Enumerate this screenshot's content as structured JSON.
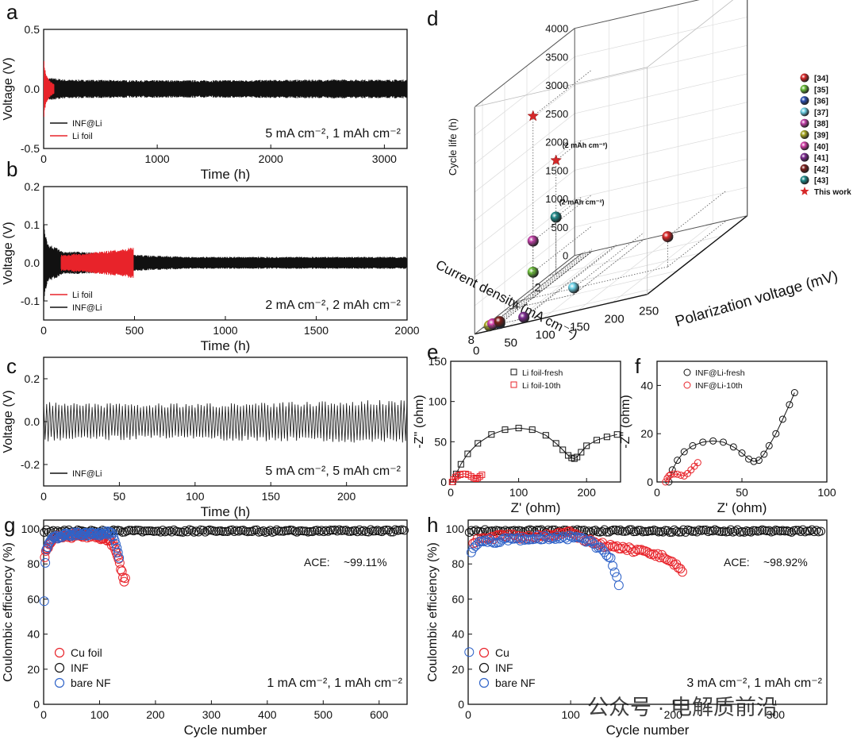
{
  "watermark": "公众号 · 电解质前沿",
  "colors": {
    "black": "#111111",
    "red": "#e8232a",
    "blue": "#2f63c8",
    "grid": "#d8d8d8"
  },
  "chart_data": [
    {
      "id": "a",
      "letter": "a",
      "type": "line",
      "xlabel": "Time (h)",
      "ylabel": "Voltage (V)",
      "xlim": [
        0,
        3200
      ],
      "ylim": [
        -0.5,
        0.5
      ],
      "xticks": [
        0,
        1000,
        2000,
        3000
      ],
      "yticks": [
        -0.5,
        0.0,
        0.5
      ],
      "xtick_labels": [
        "0",
        "1000",
        "2000",
        "3000"
      ],
      "ytick_labels": [
        "-0.5",
        "0.0",
        "0.5"
      ],
      "legend": [
        "INF@Li",
        "Li foil"
      ],
      "condition": "5 mA cm⁻², 1 mAh cm⁻²",
      "series": [
        {
          "name": "INF@Li",
          "color": "#111111",
          "x": [
            0,
            50,
            200,
            800,
            1500,
            2500,
            3200
          ],
          "amp": [
            0.06,
            0.09,
            0.075,
            0.07,
            0.07,
            0.075,
            0.075
          ]
        },
        {
          "name": "Li foil",
          "color": "#e8232a",
          "x": [
            0,
            20,
            60,
            90
          ],
          "amp": [
            0.25,
            0.12,
            0.06,
            0.04
          ]
        }
      ]
    },
    {
      "id": "b",
      "letter": "b",
      "type": "line",
      "xlabel": "Time (h)",
      "ylabel": "Voltage (V)",
      "xlim": [
        0,
        2000
      ],
      "ylim": [
        -0.15,
        0.2
      ],
      "xticks": [
        0,
        500,
        1000,
        1500,
        2000
      ],
      "yticks": [
        -0.1,
        0.0,
        0.1,
        0.2
      ],
      "xtick_labels": [
        "0",
        "500",
        "1000",
        "1500",
        "2000"
      ],
      "ytick_labels": [
        "-0.1",
        "0.0",
        "0.1",
        "0.2"
      ],
      "legend": [
        "Li foil",
        "INF@Li"
      ],
      "condition": "2 mA cm⁻², 2 mAh cm⁻²",
      "series": [
        {
          "name": "INF@Li",
          "color": "#111111",
          "x": [
            0,
            20,
            100,
            300,
            500,
            800,
            2000
          ],
          "amp": [
            0.1,
            0.05,
            0.03,
            0.025,
            0.02,
            0.015,
            0.015
          ]
        },
        {
          "name": "Li foil",
          "color": "#e8232a",
          "x": [
            100,
            250,
            350,
            450,
            490
          ],
          "amp": [
            0.02,
            0.025,
            0.03,
            0.035,
            0.04
          ]
        }
      ]
    },
    {
      "id": "c",
      "letter": "c",
      "type": "line",
      "xlabel": "Time (h)",
      "ylabel": "Voltage (V)",
      "xlim": [
        0,
        240
      ],
      "ylim": [
        -0.3,
        0.3
      ],
      "xticks": [
        0,
        50,
        100,
        150,
        200
      ],
      "yticks": [
        -0.2,
        0.0,
        0.2
      ],
      "xtick_labels": [
        "0",
        "50",
        "100",
        "150",
        "200"
      ],
      "ytick_labels": [
        "-0.2",
        "0.0",
        "0.2"
      ],
      "legend": [
        "INF@Li"
      ],
      "condition": "5 mA cm⁻², 5 mAh cm⁻²",
      "cycle_period_h": 2,
      "series": [
        {
          "name": "INF@Li",
          "color": "#111111",
          "x": [
            0,
            5,
            50,
            100,
            150,
            200,
            240
          ],
          "amp": [
            0.1,
            0.08,
            0.075,
            0.075,
            0.08,
            0.085,
            0.09
          ]
        }
      ]
    },
    {
      "id": "d",
      "letter": "d",
      "type": "scatter",
      "xlabel": "Current density (mA cm⁻²)",
      "ylabel": "Polarization voltage (mV)",
      "zlabel": "Cycle life (h)",
      "xlim": [
        0,
        8
      ],
      "ylim": [
        0,
        250
      ],
      "zlim": [
        0,
        4000
      ],
      "xticks": [
        2,
        4,
        6,
        8
      ],
      "yticks": [
        0,
        50,
        100,
        150,
        200,
        250
      ],
      "zticks": [
        0,
        500,
        1000,
        1500,
        2000,
        2500,
        3000,
        3500,
        4000
      ],
      "xtick_labels": [
        "2",
        "4",
        "6",
        "8"
      ],
      "ytick_labels": [
        "0",
        "50",
        "100",
        "150",
        "200",
        "250"
      ],
      "ztick_labels": [
        "0",
        "500",
        "1000",
        "1500",
        "2000",
        "2500",
        "3000",
        "3500",
        "4000"
      ],
      "annotations": [
        "(2 mAh cm⁻²)",
        "(2 mAh cm⁻²)"
      ],
      "points": [
        {
          "label": "[34]",
          "color": "#d62728",
          "current": 5,
          "polarization": 220,
          "cycle_life": 530
        },
        {
          "label": "[35]",
          "color": "#6cbf3a",
          "current": 5,
          "polarization": 25,
          "cycle_life": 450
        },
        {
          "label": "[36]",
          "color": "#2a4fb0",
          "current": 8,
          "polarization": 25,
          "cycle_life": 10
        },
        {
          "label": "[37]",
          "color": "#6fd3e8",
          "current": 6,
          "polarization": 100,
          "cycle_life": 120
        },
        {
          "label": "[38]",
          "color": "#c23fa8",
          "current": 5,
          "polarization": 25,
          "cycle_life": 1000
        },
        {
          "label": "[39]",
          "color": "#a6a622",
          "current": 8,
          "polarization": 10,
          "cycle_life": 10
        },
        {
          "label": "[40]",
          "color": "#d13da5",
          "current": 8,
          "polarization": 15,
          "cycle_life": 30
        },
        {
          "label": "[41]",
          "color": "#7b2a8f",
          "current": 8,
          "polarization": 60,
          "cycle_life": 20
        },
        {
          "label": "[42]",
          "color": "#7a1f1a",
          "current": 8,
          "polarization": 25,
          "cycle_life": 40
        },
        {
          "label": "[43]",
          "color": "#1d8a8a",
          "current": 2,
          "polarization": 10,
          "cycle_life": 1000
        },
        {
          "label": "This work",
          "color": "#d62728",
          "current": 5,
          "polarization": 25,
          "cycle_life": 3200,
          "marker": "star"
        },
        {
          "label": "This work",
          "color": "#d62728",
          "current": 2,
          "polarization": 10,
          "cycle_life": 2000,
          "marker": "star"
        }
      ],
      "legend": [
        "[34]",
        "[35]",
        "[36]",
        "[37]",
        "[38]",
        "[39]",
        "[40]",
        "[41]",
        "[42]",
        "[43]",
        "This work"
      ]
    },
    {
      "id": "e",
      "letter": "e",
      "type": "scatter",
      "xlabel": "Z' (ohm)",
      "ylabel": "-Z'' (ohm)",
      "xlim": [
        0,
        250
      ],
      "ylim": [
        0,
        150
      ],
      "xticks": [
        0,
        100,
        200
      ],
      "yticks": [
        0,
        50,
        100,
        150
      ],
      "xtick_labels": [
        "0",
        "100",
        "200"
      ],
      "ytick_labels": [
        "0",
        "50",
        "100",
        "150"
      ],
      "legend": [
        "Li foil-fresh",
        "Li foil-10th"
      ],
      "series": [
        {
          "name": "Li foil-fresh",
          "color": "#111111",
          "marker": "square",
          "x": [
            3,
            8,
            15,
            25,
            40,
            60,
            80,
            100,
            120,
            140,
            155,
            165,
            173,
            178,
            182,
            186,
            192,
            200,
            215,
            230,
            245
          ],
          "y": [
            0,
            10,
            22,
            35,
            48,
            59,
            65,
            67,
            65,
            58,
            48,
            40,
            33,
            30,
            29,
            31,
            37,
            45,
            52,
            56,
            59
          ]
        },
        {
          "name": "Li foil-10th",
          "color": "#e8232a",
          "marker": "square",
          "x": [
            2,
            4,
            7,
            10,
            14,
            18,
            22,
            26,
            30,
            34,
            37,
            40,
            43,
            46
          ],
          "y": [
            0,
            3,
            6,
            8,
            9,
            10,
            10,
            9,
            7,
            5,
            4,
            5,
            7,
            9
          ]
        }
      ]
    },
    {
      "id": "f",
      "letter": "f",
      "type": "scatter",
      "xlabel": "Z' (ohm)",
      "ylabel": "-Z'' (ohm)",
      "xlim": [
        0,
        100
      ],
      "ylim": [
        0,
        50
      ],
      "xticks": [
        0,
        50,
        100
      ],
      "yticks": [
        0,
        20,
        40
      ],
      "xtick_labels": [
        "0",
        "50",
        "100"
      ],
      "ytick_labels": [
        "0",
        "20",
        "40"
      ],
      "legend": [
        "INF@Li-fresh",
        "INF@Li-10th"
      ],
      "series": [
        {
          "name": "INF@Li-fresh",
          "color": "#111111",
          "marker": "circle",
          "x": [
            7,
            9,
            12,
            16,
            21,
            27,
            33,
            39,
            45,
            50,
            54,
            57,
            60,
            63,
            66,
            70,
            74,
            78,
            81
          ],
          "y": [
            0,
            5,
            9,
            12.5,
            15,
            16.5,
            17,
            16.5,
            14.5,
            12,
            9.5,
            8.5,
            9,
            11.5,
            15,
            20,
            26,
            32,
            37
          ]
        },
        {
          "name": "INF@Li-10th",
          "color": "#e8232a",
          "marker": "circle",
          "x": [
            5,
            6,
            7,
            8,
            10,
            12,
            14,
            16,
            18,
            20,
            22,
            24
          ],
          "y": [
            0,
            1.5,
            2.5,
            3,
            3.3,
            3.2,
            2.8,
            2.5,
            3.5,
            5,
            6.5,
            8
          ]
        }
      ]
    },
    {
      "id": "g",
      "letter": "g",
      "type": "scatter",
      "xlabel": "Cycle number",
      "ylabel": "Coulombic efficiency (%)",
      "xlim": [
        0,
        650
      ],
      "ylim": [
        0,
        105
      ],
      "xticks": [
        0,
        100,
        200,
        300,
        400,
        500,
        600
      ],
      "yticks": [
        0,
        20,
        40,
        60,
        80,
        100
      ],
      "xtick_labels": [
        "0",
        "100",
        "200",
        "300",
        "400",
        "500",
        "600"
      ],
      "ytick_labels": [
        "0",
        "20",
        "40",
        "60",
        "80",
        "100"
      ],
      "legend": [
        "Cu foil",
        "INF",
        "bare NF"
      ],
      "ace_label": "ACE:",
      "ace_value": "~99.11%",
      "condition": "1 mA cm⁻², 1 mAh cm⁻²",
      "series": [
        {
          "name": "INF",
          "color": "#111111",
          "x_range": [
            1,
            645
          ],
          "y_mean": 98.8,
          "y_jitter": 0.8
        },
        {
          "name": "Cu foil",
          "color": "#e8232a",
          "x": [
            2,
            10,
            20,
            30,
            40,
            50,
            60,
            70,
            80,
            90,
            100,
            110,
            120,
            125,
            130,
            135,
            138,
            141,
            144,
            147
          ],
          "y": [
            85,
            92,
            95,
            96,
            96,
            96,
            97,
            96,
            96,
            96,
            95,
            95,
            93,
            90,
            86,
            82,
            78,
            73,
            69,
            75
          ]
        },
        {
          "name": "bare NF",
          "color": "#2f63c8",
          "x": [
            1,
            3,
            5,
            8,
            12,
            20,
            30,
            40,
            50,
            60,
            70,
            80,
            90,
            100,
            110,
            118,
            124,
            128,
            132,
            136
          ],
          "y": [
            60,
            80,
            88,
            92,
            94,
            95,
            96,
            97,
            97,
            97,
            97,
            97,
            97,
            97,
            98,
            98,
            96,
            92,
            88,
            82
          ]
        }
      ]
    },
    {
      "id": "h",
      "letter": "h",
      "type": "scatter",
      "xlabel": "Cycle number",
      "ylabel": "Coulombic efficiency (%)",
      "xlim": [
        0,
        350
      ],
      "ylim": [
        0,
        105
      ],
      "xticks": [
        0,
        100,
        200,
        300
      ],
      "yticks": [
        0,
        20,
        40,
        60,
        80,
        100
      ],
      "xtick_labels": [
        "0",
        "100",
        "200",
        "300"
      ],
      "ytick_labels": [
        "0",
        "20",
        "40",
        "60",
        "80",
        "100"
      ],
      "legend": [
        "Cu",
        "INF",
        "bare NF"
      ],
      "ace_label": "ACE:",
      "ace_value": "~98.92%",
      "condition": "3 mA cm⁻², 1 mAh cm⁻²",
      "series": [
        {
          "name": "INF",
          "color": "#111111",
          "x_range": [
            1,
            345
          ],
          "y_mean": 98.8,
          "y_jitter": 0.8
        },
        {
          "name": "Cu",
          "color": "#e8232a",
          "x": [
            5,
            20,
            40,
            60,
            80,
            95,
            100,
            110,
            120,
            130,
            140,
            150,
            160,
            170,
            180,
            190,
            195,
            200,
            205,
            210
          ],
          "y": [
            93,
            95,
            96,
            95,
            96,
            99,
            97,
            95,
            93,
            91,
            90,
            89,
            88,
            87,
            85,
            84,
            82,
            80,
            78,
            76
          ]
        },
        {
          "name": "bare NF",
          "color": "#2f63c8",
          "x": [
            1,
            3,
            6,
            10,
            20,
            30,
            40,
            50,
            60,
            70,
            80,
            90,
            100,
            110,
            120,
            130,
            138,
            142,
            145,
            148
          ],
          "y": [
            31,
            86,
            90,
            92,
            93,
            93,
            94,
            94,
            95,
            95,
            95,
            95,
            95,
            94,
            92,
            88,
            84,
            78,
            72,
            66
          ]
        }
      ]
    }
  ]
}
